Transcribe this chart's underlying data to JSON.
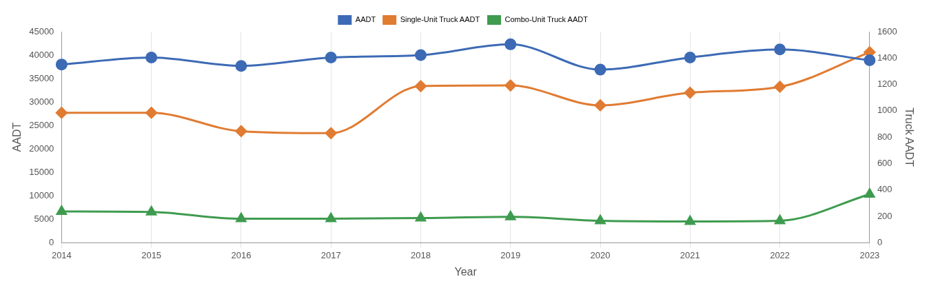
{
  "chart_data": {
    "type": "line",
    "xlabel": "Year",
    "ylabel": "AADT",
    "y2label": "Truck AADT",
    "x": [
      2014,
      2015,
      2016,
      2017,
      2018,
      2019,
      2020,
      2021,
      2022,
      2023
    ],
    "xlim": [
      2014,
      2023
    ],
    "xticks": [
      2014,
      2015,
      2016,
      2017,
      2018,
      2019,
      2020,
      2021,
      2022,
      2023
    ],
    "ylim": [
      0,
      45000
    ],
    "yticks": [
      0,
      5000,
      10000,
      15000,
      20000,
      25000,
      30000,
      35000,
      40000,
      45000
    ],
    "y2lim": [
      0,
      1600
    ],
    "y2ticks": [
      0,
      200,
      400,
      600,
      800,
      1000,
      1200,
      1400,
      1600
    ],
    "grid": "x",
    "legend": "top",
    "series": [
      {
        "name": "AADT",
        "color": "#3c6ab5",
        "marker": "circle",
        "values": [
          38000,
          39500,
          37700,
          39500,
          40000,
          42300,
          36900,
          39500,
          41200,
          38900
        ]
      },
      {
        "name": "Single-Unit Truck AADT",
        "color": "#e07b32",
        "marker": "diamond",
        "axis": "y2",
        "values": [
          985,
          985,
          845,
          830,
          1187,
          1192,
          1041,
          1137,
          1182,
          1444
        ]
      },
      {
        "name": "Combo-Unit Truck AADT",
        "color": "#3e9b4f",
        "marker": "triangle",
        "axis": "y2",
        "values": [
          236,
          232,
          181,
          181,
          186,
          196,
          166,
          161,
          166,
          367
        ]
      }
    ]
  }
}
